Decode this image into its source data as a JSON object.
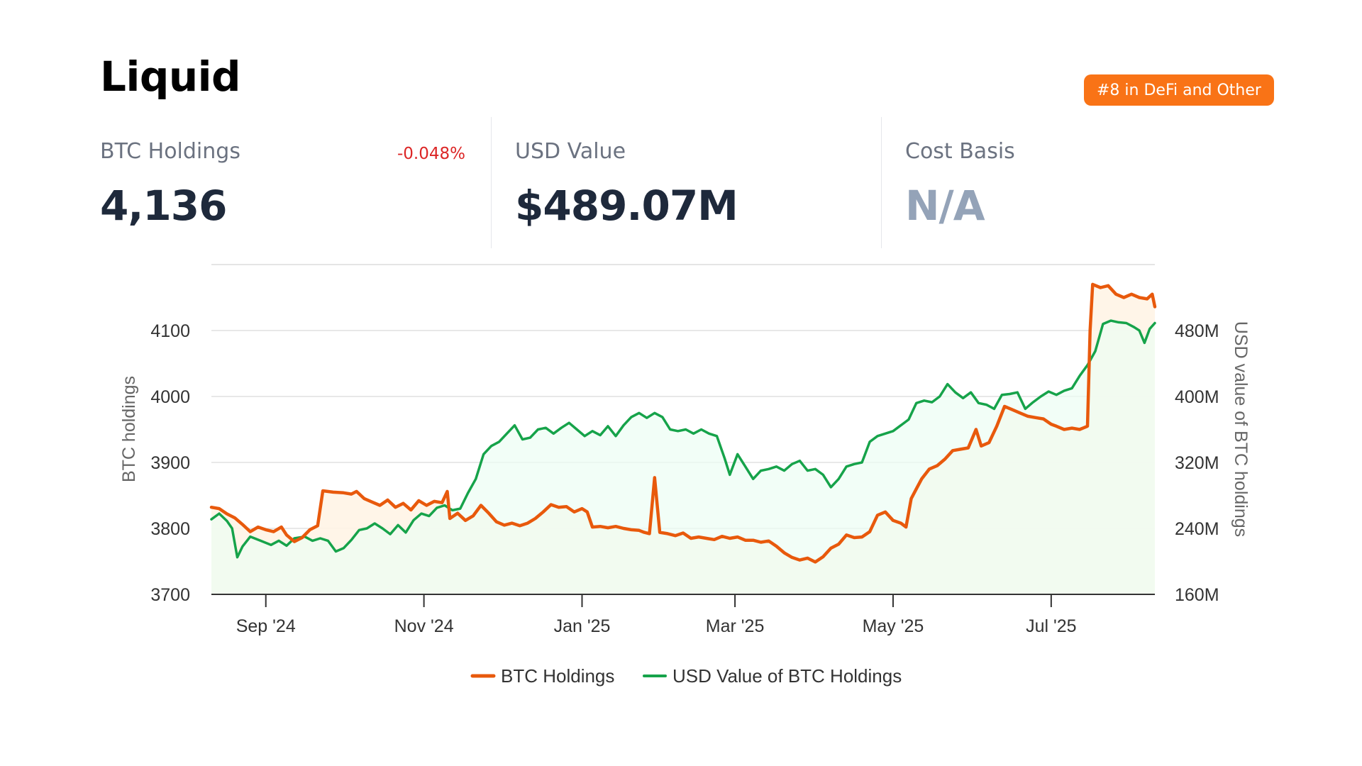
{
  "header": {
    "title": "Liquid",
    "rank_badge": "#8 in DeFi and Other"
  },
  "stats": {
    "btc_holdings": {
      "label": "BTC Holdings",
      "value": "4,136",
      "change": "-0.048%"
    },
    "usd_value": {
      "label": "USD Value",
      "value": "$489.07M"
    },
    "cost_basis": {
      "label": "Cost Basis",
      "value": "N/A"
    }
  },
  "colors": {
    "btc": "#e8590c",
    "usd": "#16a34a",
    "btc_fill": "#fff4e6",
    "usd_fill": "#ecfdf3",
    "badge": "#f97316",
    "negative": "#dc2626"
  },
  "chart_data": {
    "type": "line",
    "x_ticks": [
      "Sep '24",
      "Nov '24",
      "Jan '25",
      "Mar '25",
      "May '25",
      "Jul '25"
    ],
    "x_range": [
      "2024-08-11",
      "2025-08-10"
    ],
    "y_left": {
      "label": "BTC holdings",
      "range": [
        3700,
        4200
      ],
      "ticks": [
        3700,
        3800,
        3900,
        4000,
        4100
      ]
    },
    "y_right": {
      "label": "USD value of BTC holdings",
      "range": [
        160,
        560
      ],
      "ticks": [
        "160M",
        "240M",
        "320M",
        "400M",
        "480M"
      ],
      "tick_values": [
        160,
        240,
        320,
        400,
        480
      ],
      "unit": "M USD"
    },
    "grid": true,
    "legend_position": "bottom",
    "series": [
      {
        "name": "BTC Holdings",
        "axis": "left",
        "points": [
          [
            "2024-08-11",
            3832
          ],
          [
            "2024-08-14",
            3830
          ],
          [
            "2024-08-17",
            3822
          ],
          [
            "2024-08-20",
            3816
          ],
          [
            "2024-08-23",
            3806
          ],
          [
            "2024-08-26",
            3795
          ],
          [
            "2024-08-29",
            3802
          ],
          [
            "2024-09-01",
            3798
          ],
          [
            "2024-09-04",
            3795
          ],
          [
            "2024-09-07",
            3802
          ],
          [
            "2024-09-09",
            3790
          ],
          [
            "2024-09-12",
            3780
          ],
          [
            "2024-09-15",
            3786
          ],
          [
            "2024-09-18",
            3798
          ],
          [
            "2024-09-21",
            3804
          ],
          [
            "2024-09-23",
            3857
          ],
          [
            "2024-09-27",
            3855
          ],
          [
            "2024-10-01",
            3854
          ],
          [
            "2024-10-04",
            3852
          ],
          [
            "2024-10-06",
            3856
          ],
          [
            "2024-10-09",
            3845
          ],
          [
            "2024-10-12",
            3840
          ],
          [
            "2024-10-15",
            3835
          ],
          [
            "2024-10-18",
            3843
          ],
          [
            "2024-10-21",
            3832
          ],
          [
            "2024-10-24",
            3838
          ],
          [
            "2024-10-27",
            3828
          ],
          [
            "2024-10-30",
            3842
          ],
          [
            "2024-11-02",
            3835
          ],
          [
            "2024-11-05",
            3841
          ],
          [
            "2024-11-08",
            3839
          ],
          [
            "2024-11-10",
            3856
          ],
          [
            "2024-11-11",
            3815
          ],
          [
            "2024-11-14",
            3823
          ],
          [
            "2024-11-17",
            3812
          ],
          [
            "2024-11-20",
            3819
          ],
          [
            "2024-11-23",
            3835
          ],
          [
            "2024-11-26",
            3823
          ],
          [
            "2024-11-29",
            3810
          ],
          [
            "2024-12-02",
            3805
          ],
          [
            "2024-12-05",
            3808
          ],
          [
            "2024-12-08",
            3804
          ],
          [
            "2024-12-11",
            3808
          ],
          [
            "2024-12-14",
            3815
          ],
          [
            "2024-12-17",
            3825
          ],
          [
            "2024-12-20",
            3836
          ],
          [
            "2024-12-23",
            3832
          ],
          [
            "2024-12-26",
            3833
          ],
          [
            "2024-12-29",
            3825
          ],
          [
            "2025-01-01",
            3830
          ],
          [
            "2025-01-03",
            3825
          ],
          [
            "2025-01-05",
            3802
          ],
          [
            "2025-01-08",
            3803
          ],
          [
            "2025-01-11",
            3801
          ],
          [
            "2025-01-14",
            3803
          ],
          [
            "2025-01-17",
            3800
          ],
          [
            "2025-01-20",
            3798
          ],
          [
            "2025-01-23",
            3797
          ],
          [
            "2025-01-25",
            3794
          ],
          [
            "2025-01-27",
            3792
          ],
          [
            "2025-01-29",
            3877
          ],
          [
            "2025-01-31",
            3794
          ],
          [
            "2025-02-03",
            3792
          ],
          [
            "2025-02-06",
            3789
          ],
          [
            "2025-02-09",
            3793
          ],
          [
            "2025-02-12",
            3785
          ],
          [
            "2025-02-15",
            3787
          ],
          [
            "2025-02-18",
            3785
          ],
          [
            "2025-02-21",
            3783
          ],
          [
            "2025-02-24",
            3788
          ],
          [
            "2025-02-27",
            3785
          ],
          [
            "2025-03-02",
            3787
          ],
          [
            "2025-03-05",
            3782
          ],
          [
            "2025-03-08",
            3782
          ],
          [
            "2025-03-11",
            3779
          ],
          [
            "2025-03-14",
            3781
          ],
          [
            "2025-03-17",
            3773
          ],
          [
            "2025-03-20",
            3763
          ],
          [
            "2025-03-23",
            3756
          ],
          [
            "2025-03-26",
            3752
          ],
          [
            "2025-03-29",
            3755
          ],
          [
            "2025-04-01",
            3749
          ],
          [
            "2025-04-04",
            3757
          ],
          [
            "2025-04-07",
            3770
          ],
          [
            "2025-04-10",
            3776
          ],
          [
            "2025-04-13",
            3790
          ],
          [
            "2025-04-16",
            3786
          ],
          [
            "2025-04-19",
            3787
          ],
          [
            "2025-04-22",
            3795
          ],
          [
            "2025-04-25",
            3820
          ],
          [
            "2025-04-28",
            3825
          ],
          [
            "2025-05-01",
            3812
          ],
          [
            "2025-05-04",
            3808
          ],
          [
            "2025-05-06",
            3802
          ],
          [
            "2025-05-08",
            3845
          ],
          [
            "2025-05-10",
            3860
          ],
          [
            "2025-05-12",
            3875
          ],
          [
            "2025-05-15",
            3890
          ],
          [
            "2025-05-18",
            3895
          ],
          [
            "2025-05-21",
            3905
          ],
          [
            "2025-05-24",
            3918
          ],
          [
            "2025-05-27",
            3920
          ],
          [
            "2025-05-30",
            3922
          ],
          [
            "2025-06-02",
            3950
          ],
          [
            "2025-06-04",
            3925
          ],
          [
            "2025-06-07",
            3930
          ],
          [
            "2025-06-10",
            3955
          ],
          [
            "2025-06-13",
            3985
          ],
          [
            "2025-06-16",
            3980
          ],
          [
            "2025-06-19",
            3975
          ],
          [
            "2025-06-22",
            3970
          ],
          [
            "2025-06-25",
            3968
          ],
          [
            "2025-06-28",
            3966
          ],
          [
            "2025-07-01",
            3958
          ],
          [
            "2025-07-03",
            3955
          ],
          [
            "2025-07-06",
            3950
          ],
          [
            "2025-07-09",
            3952
          ],
          [
            "2025-07-12",
            3950
          ],
          [
            "2025-07-15",
            3955
          ],
          [
            "2025-07-16",
            4100
          ],
          [
            "2025-07-17",
            4170
          ],
          [
            "2025-07-20",
            4165
          ],
          [
            "2025-07-23",
            4168
          ],
          [
            "2025-07-26",
            4155
          ],
          [
            "2025-07-29",
            4150
          ],
          [
            "2025-08-01",
            4155
          ],
          [
            "2025-08-04",
            4150
          ],
          [
            "2025-08-07",
            4148
          ],
          [
            "2025-08-09",
            4155
          ],
          [
            "2025-08-10",
            4136
          ]
        ]
      },
      {
        "name": "USD Value of BTC Holdings",
        "axis": "right",
        "points": [
          [
            "2024-08-11",
            251
          ],
          [
            "2024-08-14",
            258
          ],
          [
            "2024-08-17",
            249
          ],
          [
            "2024-08-19",
            240
          ],
          [
            "2024-08-21",
            205
          ],
          [
            "2024-08-23",
            218
          ],
          [
            "2024-08-26",
            230
          ],
          [
            "2024-08-30",
            225
          ],
          [
            "2024-09-03",
            220
          ],
          [
            "2024-09-06",
            225
          ],
          [
            "2024-09-09",
            219
          ],
          [
            "2024-09-12",
            228
          ],
          [
            "2024-09-16",
            230
          ],
          [
            "2024-09-19",
            225
          ],
          [
            "2024-09-22",
            228
          ],
          [
            "2024-09-25",
            225
          ],
          [
            "2024-09-28",
            212
          ],
          [
            "2024-10-01",
            216
          ],
          [
            "2024-10-04",
            226
          ],
          [
            "2024-10-07",
            238
          ],
          [
            "2024-10-10",
            240
          ],
          [
            "2024-10-13",
            246
          ],
          [
            "2024-10-16",
            240
          ],
          [
            "2024-10-19",
            233
          ],
          [
            "2024-10-22",
            244
          ],
          [
            "2024-10-25",
            235
          ],
          [
            "2024-10-28",
            250
          ],
          [
            "2024-10-31",
            258
          ],
          [
            "2024-11-03",
            255
          ],
          [
            "2024-11-06",
            265
          ],
          [
            "2024-11-09",
            268
          ],
          [
            "2024-11-12",
            262
          ],
          [
            "2024-11-15",
            264
          ],
          [
            "2024-11-18",
            283
          ],
          [
            "2024-11-21",
            300
          ],
          [
            "2024-11-24",
            330
          ],
          [
            "2024-11-27",
            340
          ],
          [
            "2024-11-30",
            345
          ],
          [
            "2024-12-03",
            355
          ],
          [
            "2024-12-06",
            365
          ],
          [
            "2024-12-09",
            348
          ],
          [
            "2024-12-12",
            350
          ],
          [
            "2024-12-15",
            360
          ],
          [
            "2024-12-18",
            362
          ],
          [
            "2024-12-21",
            355
          ],
          [
            "2024-12-24",
            362
          ],
          [
            "2024-12-27",
            368
          ],
          [
            "2024-12-30",
            360
          ],
          [
            "2025-01-02",
            352
          ],
          [
            "2025-01-05",
            358
          ],
          [
            "2025-01-08",
            353
          ],
          [
            "2025-01-11",
            364
          ],
          [
            "2025-01-14",
            352
          ],
          [
            "2025-01-17",
            365
          ],
          [
            "2025-01-20",
            375
          ],
          [
            "2025-01-23",
            380
          ],
          [
            "2025-01-26",
            374
          ],
          [
            "2025-01-29",
            380
          ],
          [
            "2025-02-01",
            375
          ],
          [
            "2025-02-04",
            360
          ],
          [
            "2025-02-07",
            358
          ],
          [
            "2025-02-10",
            360
          ],
          [
            "2025-02-13",
            355
          ],
          [
            "2025-02-16",
            360
          ],
          [
            "2025-02-19",
            355
          ],
          [
            "2025-02-22",
            352
          ],
          [
            "2025-02-25",
            325
          ],
          [
            "2025-02-27",
            305
          ],
          [
            "2025-03-02",
            330
          ],
          [
            "2025-03-05",
            315
          ],
          [
            "2025-03-08",
            300
          ],
          [
            "2025-03-11",
            310
          ],
          [
            "2025-03-14",
            312
          ],
          [
            "2025-03-17",
            315
          ],
          [
            "2025-03-20",
            310
          ],
          [
            "2025-03-23",
            318
          ],
          [
            "2025-03-26",
            322
          ],
          [
            "2025-03-29",
            310
          ],
          [
            "2025-04-01",
            312
          ],
          [
            "2025-04-04",
            305
          ],
          [
            "2025-04-07",
            290
          ],
          [
            "2025-04-10",
            300
          ],
          [
            "2025-04-13",
            315
          ],
          [
            "2025-04-16",
            318
          ],
          [
            "2025-04-19",
            320
          ],
          [
            "2025-04-22",
            345
          ],
          [
            "2025-04-25",
            352
          ],
          [
            "2025-04-28",
            355
          ],
          [
            "2025-05-01",
            358
          ],
          [
            "2025-05-04",
            365
          ],
          [
            "2025-05-07",
            372
          ],
          [
            "2025-05-10",
            392
          ],
          [
            "2025-05-13",
            395
          ],
          [
            "2025-05-16",
            393
          ],
          [
            "2025-05-19",
            400
          ],
          [
            "2025-05-22",
            415
          ],
          [
            "2025-05-25",
            405
          ],
          [
            "2025-05-28",
            398
          ],
          [
            "2025-05-31",
            405
          ],
          [
            "2025-06-03",
            392
          ],
          [
            "2025-06-06",
            390
          ],
          [
            "2025-06-09",
            385
          ],
          [
            "2025-06-12",
            402
          ],
          [
            "2025-06-15",
            403
          ],
          [
            "2025-06-18",
            405
          ],
          [
            "2025-06-21",
            385
          ],
          [
            "2025-06-24",
            393
          ],
          [
            "2025-06-27",
            400
          ],
          [
            "2025-06-30",
            406
          ],
          [
            "2025-07-03",
            402
          ],
          [
            "2025-07-06",
            407
          ],
          [
            "2025-07-09",
            410
          ],
          [
            "2025-07-12",
            425
          ],
          [
            "2025-07-15",
            438
          ],
          [
            "2025-07-18",
            455
          ],
          [
            "2025-07-21",
            488
          ],
          [
            "2025-07-24",
            492
          ],
          [
            "2025-07-27",
            490
          ],
          [
            "2025-07-30",
            489
          ],
          [
            "2025-08-02",
            484
          ],
          [
            "2025-08-04",
            480
          ],
          [
            "2025-08-06",
            465
          ],
          [
            "2025-08-08",
            482
          ],
          [
            "2025-08-10",
            489.07
          ]
        ]
      }
    ]
  }
}
